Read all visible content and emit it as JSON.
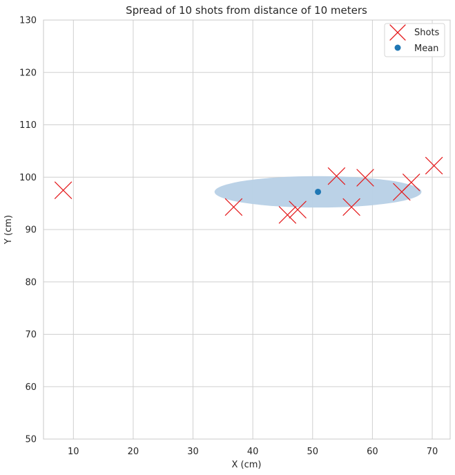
{
  "chart_data": {
    "type": "scatter",
    "title": "Spread of 10 shots from distance of 10 meters",
    "xlabel": "X (cm)",
    "ylabel": "Y (cm)",
    "xlim": [
      5,
      73
    ],
    "ylim": [
      50,
      130
    ],
    "xticks": [
      10,
      20,
      30,
      40,
      50,
      60,
      70
    ],
    "yticks": [
      50,
      60,
      70,
      80,
      90,
      100,
      110,
      120,
      130
    ],
    "grid": true,
    "legend_position": "top-right",
    "series": [
      {
        "name": "Shots",
        "marker": "x",
        "color": "#e41a1c",
        "points": [
          {
            "x": 8.3,
            "y": 97.5
          },
          {
            "x": 36.8,
            "y": 94.3
          },
          {
            "x": 45.8,
            "y": 92.8
          },
          {
            "x": 47.5,
            "y": 93.8
          },
          {
            "x": 54.0,
            "y": 100.2
          },
          {
            "x": 56.5,
            "y": 94.3
          },
          {
            "x": 58.8,
            "y": 99.9
          },
          {
            "x": 64.9,
            "y": 97.2
          },
          {
            "x": 66.5,
            "y": 99.0
          },
          {
            "x": 70.3,
            "y": 102.2
          }
        ]
      },
      {
        "name": "Mean",
        "marker": "o",
        "color": "#1f77b4",
        "points": [
          {
            "x": 50.9,
            "y": 97.2
          }
        ]
      }
    ],
    "spread_ellipse": {
      "center_x": 50.9,
      "center_y": 97.2,
      "half_width_x": 17.3,
      "half_height_y": 3.0,
      "fill": "#b7d0e6"
    },
    "legend": [
      {
        "label": "Shots",
        "marker": "x",
        "color": "#e41a1c"
      },
      {
        "label": "Mean",
        "marker": "o",
        "color": "#1f77b4"
      }
    ]
  }
}
